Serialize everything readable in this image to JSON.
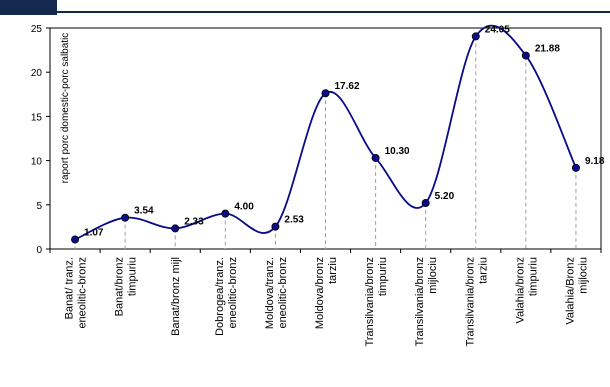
{
  "chart_data": {
    "type": "line",
    "title": "",
    "xlabel": "",
    "ylabel": "raport porc domestic-porc salbatic",
    "ylim": [
      0,
      25
    ],
    "yticks": [
      0,
      5,
      10,
      15,
      20,
      25
    ],
    "grid": false,
    "legend": "none",
    "smooth": true,
    "droplines": true,
    "colors": {
      "line": "#0a0a8a",
      "marker": "#0a0a8a",
      "dropline": "#a0a0a0",
      "frame": "#000000",
      "banner": "#14294d"
    },
    "categories": [
      [
        "Banat/ tranz.",
        "eneolitic-bronz"
      ],
      [
        "Banat/bronz",
        "timpuriu"
      ],
      [
        "Banat/bronz mijl"
      ],
      [
        "Dobrogea/tranz.",
        "eneolitic-bronz"
      ],
      [
        "Moldova/tranz.",
        "eneolitic-bronz"
      ],
      [
        "Moldova/bronz",
        "tarziu"
      ],
      [
        "Transilvania/bronz",
        "timpuriu"
      ],
      [
        "Transilvania/bronz",
        "mijlociu"
      ],
      [
        "Transilvania/bronz",
        "tarziu"
      ],
      [
        "Valahia/bronz",
        "timpuriu"
      ],
      [
        "Valahia/Bronz",
        "mijlociu"
      ]
    ],
    "values": [
      1.07,
      3.54,
      2.33,
      4.0,
      2.53,
      17.62,
      10.3,
      5.2,
      24.05,
      21.88,
      9.18
    ],
    "data_labels": [
      "1.07",
      "3.54",
      "2.33",
      "4.00",
      "2.53",
      "17.62",
      "10.30",
      "5.20",
      "24.05",
      "21.88",
      "9.18"
    ]
  }
}
